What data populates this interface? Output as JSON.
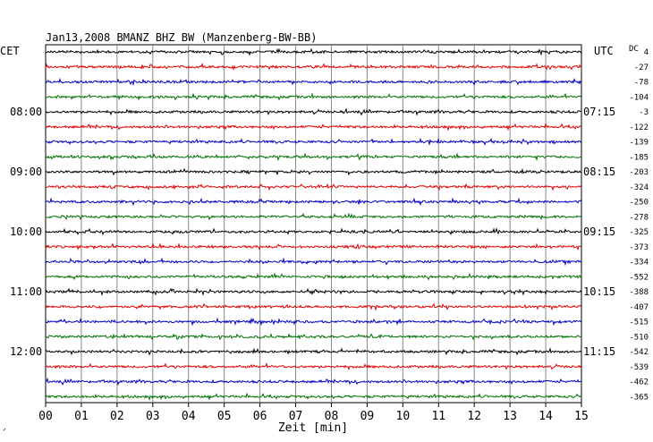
{
  "header": {
    "title": "Jan13,2008   BMANZ BHZ BW (Manzenberg-BW-BB)",
    "left_zone": "CET",
    "right_zone": "UTC",
    "dc_label": "DC",
    "dc_first_value": "4"
  },
  "chart_data": {
    "type": "line",
    "title": "Jan13,2008   BMANZ BHZ BW (Manzenberg-BW-BB)",
    "xlabel": "Zeit [min]",
    "xlim": [
      0,
      15
    ],
    "x_ticks": [
      "00",
      "01",
      "02",
      "03",
      "04",
      "05",
      "06",
      "07",
      "08",
      "09",
      "10",
      "11",
      "12",
      "13",
      "14",
      "15"
    ],
    "trace_minutes": 15,
    "trace_colors": [
      "#000000",
      "#e00000",
      "#0000c0",
      "#007000"
    ],
    "left_time_labels": [
      {
        "trace": 4,
        "label": "08:00"
      },
      {
        "trace": 8,
        "label": "09:00"
      },
      {
        "trace": 12,
        "label": "10:00"
      },
      {
        "trace": 16,
        "label": "11:00"
      },
      {
        "trace": 20,
        "label": "12:00"
      }
    ],
    "right_time_labels": [
      {
        "trace": 4,
        "label": "07:15"
      },
      {
        "trace": 8,
        "label": "08:15"
      },
      {
        "trace": 12,
        "label": "09:15"
      },
      {
        "trace": 16,
        "label": "10:15"
      },
      {
        "trace": 20,
        "label": "11:15"
      }
    ],
    "dc_offsets": [
      4,
      -27,
      -78,
      -104,
      -3,
      -122,
      -139,
      -185,
      -203,
      -324,
      -250,
      -278,
      -325,
      -373,
      -334,
      -552,
      -388,
      -407,
      -515,
      -510,
      -542,
      -539,
      -462,
      -365
    ],
    "grid": true
  }
}
